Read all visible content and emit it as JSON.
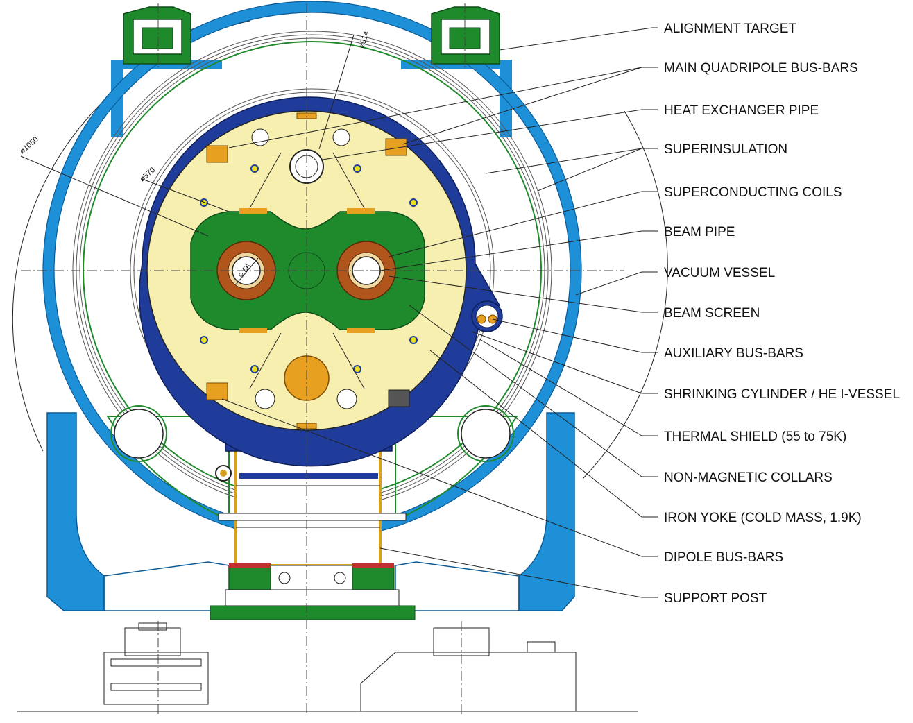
{
  "labels": [
    "ALIGNMENT TARGET",
    "MAIN QUADRIPOLE BUS-BARS",
    "HEAT EXCHANGER PIPE",
    "SUPERINSULATION",
    "SUPERCONDUCTING COILS",
    "BEAM PIPE",
    "VACUUM VESSEL",
    "BEAM SCREEN",
    "AUXILIARY BUS-BARS",
    "SHRINKING CYLINDER / HE I-VESSEL",
    "THERMAL SHIELD (55 to 75K)",
    "NON-MAGNETIC COLLARS",
    "IRON YOKE (COLD MASS, 1.9K)",
    "DIPOLE BUS-BARS",
    "SUPPORT POST"
  ],
  "dimensions": {
    "vessel": "⌀1050",
    "shield": "⌀914",
    "yoke": "⌀570",
    "beam": "⌀ 56"
  },
  "colors": {
    "vacuum_vessel": "#1e90d8",
    "cold_mass_shell": "#1f3c9a",
    "iron_yoke": "#f7efb0",
    "collars": "#1f8a2c",
    "coils": "#b0561c",
    "bus_bars": "#e8a020",
    "support_post": "#d8a020",
    "alignment_target": "#1f8a2c"
  }
}
